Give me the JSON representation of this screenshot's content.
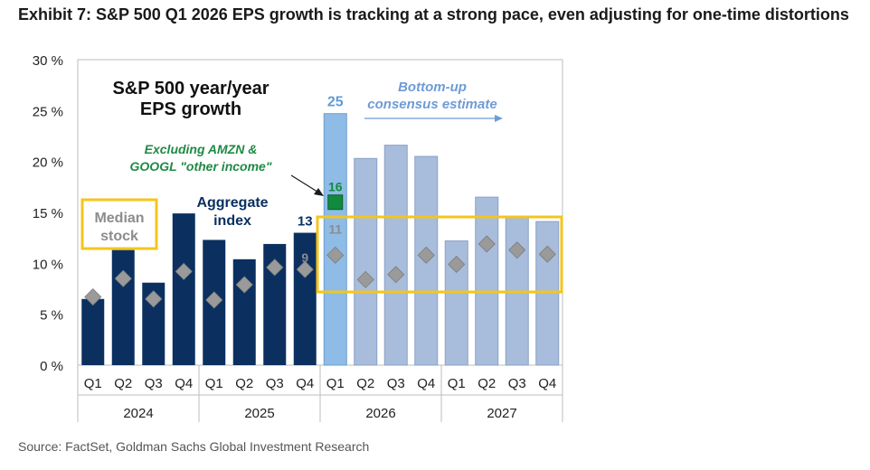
{
  "header": {
    "title": "Exhibit 7: S&P 500 Q1 2026 EPS growth is tracking at a strong pace, even adjusting for one-time distortions"
  },
  "footer": {
    "source": "Source: FactSet, Goldman Sachs Global Investment Research"
  },
  "chart_data": {
    "type": "bar",
    "title": "S&P 500 year/year EPS growth",
    "title_lines": [
      "S&P 500 year/year",
      "EPS growth"
    ],
    "categories": [
      "Q1",
      "Q2",
      "Q3",
      "Q4",
      "Q1",
      "Q2",
      "Q3",
      "Q4",
      "Q1",
      "Q2",
      "Q3",
      "Q4",
      "Q1",
      "Q2",
      "Q3",
      "Q4"
    ],
    "year_groups": [
      {
        "label": "2024",
        "start": 0,
        "end": 3
      },
      {
        "label": "2025",
        "start": 4,
        "end": 7
      },
      {
        "label": "2026",
        "start": 8,
        "end": 11
      },
      {
        "label": "2027",
        "start": 12,
        "end": 15
      }
    ],
    "ylim": [
      0,
      30
    ],
    "yticks": [
      "0 %",
      "5 %",
      "10 %",
      "15 %",
      "20 %",
      "25 %",
      "30 %"
    ],
    "grid": false,
    "series": [
      {
        "name": "Aggregate index",
        "values": [
          6.5,
          11.3,
          8.1,
          14.9,
          12.3,
          10.4,
          11.9,
          13,
          24.7,
          20.3,
          21.6,
          20.5,
          12.2,
          16.5,
          14.5,
          14.1
        ]
      },
      {
        "name": "Median stock",
        "values": [
          6.7,
          8.5,
          6.5,
          9.2,
          6.4,
          7.9,
          9.6,
          9.4,
          10.8,
          8.4,
          8.9,
          10.8,
          9.9,
          11.9,
          11.3,
          10.9
        ]
      }
    ],
    "excluding_marker": {
      "index": 8,
      "value": 16
    },
    "bar_labels": [
      {
        "index": 7,
        "text": "13",
        "value": 13
      },
      {
        "index": 7,
        "text": "9",
        "value": 9.4
      },
      {
        "index": 8,
        "text": "25",
        "value": 24.7
      },
      {
        "index": 8,
        "text": "16",
        "value": 16
      },
      {
        "index": 8,
        "text": "11",
        "value": 10.8
      }
    ],
    "annotations": {
      "median": [
        "Median",
        "stock"
      ],
      "aggregate": [
        "Aggregate",
        "index"
      ],
      "excluding": [
        "Excluding AMZN &",
        "GOOGL \"other income\""
      ],
      "consensus": [
        "Bottom-up",
        "consensus estimate"
      ]
    },
    "colors": {
      "actual": "#0b3060",
      "q1_2026": "#8ebce6",
      "estimate": "#a8bcdb",
      "median_marker": "#9a9a9a",
      "excluding_marker": "#118a3e",
      "excluding_text": "#1f8a45",
      "consensus_text": "#6f9bd6",
      "highlight": "#f4c51d",
      "axis_text": "#222222",
      "median_text": "#8c8c8c"
    }
  }
}
